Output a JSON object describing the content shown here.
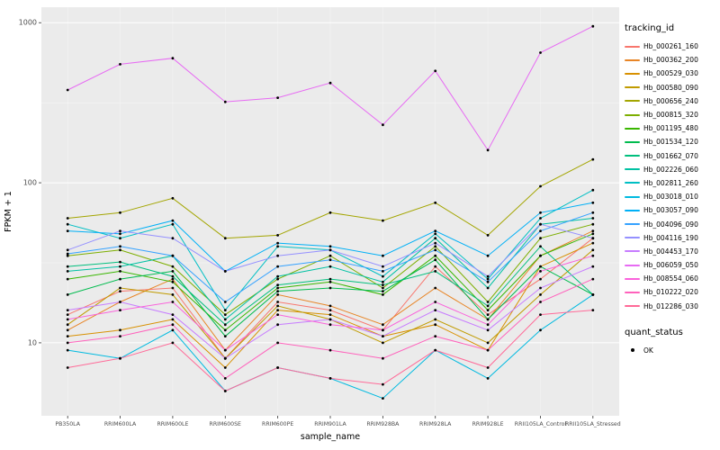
{
  "chart_data": {
    "type": "line",
    "title": "",
    "xlabel": "sample_name",
    "ylabel": "FPKM + 1",
    "y_scale": "log10",
    "ylim": [
      3.5,
      1250
    ],
    "y_major_ticks": [
      10,
      100,
      1000
    ],
    "y_minor_ticks": [
      31.62,
      316.2
    ],
    "grid": true,
    "panel_bg": "#EBEBEB",
    "grid_color": "#FFFFFF",
    "tick_label_color": "#4D4D4D",
    "axis_title_color": "#000000",
    "point_color": "#000000",
    "legend_position": "right",
    "legend_title": "tracking_id",
    "point_legend_title": "quant_status",
    "point_legend_entries": [
      {
        "label": "OK"
      }
    ],
    "categories": [
      "PB350LA",
      "RRIM600LA",
      "RRIM600LE",
      "RRIM600SE",
      "RRIM600PE",
      "RRIM901LA",
      "RRIM928BA",
      "RRIM928LA",
      "RRIM928LE",
      "RRII105LA_Control",
      "RRII105LA_Stressed"
    ],
    "series": [
      {
        "name": "Hb_000261_160",
        "color": "#F8766D",
        "values": [
          15,
          21,
          22,
          8,
          18,
          16,
          12,
          30,
          15,
          25,
          45
        ]
      },
      {
        "name": "Hb_000362_200",
        "color": "#E88526",
        "values": [
          12,
          18,
          25,
          9,
          20,
          17,
          13,
          22,
          14,
          35,
          50
        ]
      },
      {
        "name": "Hb_000529_030",
        "color": "#D89000",
        "values": [
          11,
          12,
          14,
          7,
          16,
          15,
          11,
          13,
          9,
          30,
          42
        ]
      },
      {
        "name": "Hb_000580_090",
        "color": "#C09B00",
        "values": [
          13,
          22,
          20,
          8,
          17,
          14,
          10,
          14,
          10,
          20,
          38
        ]
      },
      {
        "name": "Hb_000656_240",
        "color": "#A3A500",
        "values": [
          60,
          65,
          80,
          45,
          47,
          65,
          58,
          75,
          47,
          95,
          140
        ]
      },
      {
        "name": "Hb_000815_320",
        "color": "#7CAE00",
        "values": [
          35,
          38,
          30,
          15,
          25,
          35,
          22,
          40,
          18,
          45,
          55
        ]
      },
      {
        "name": "Hb_001195_480",
        "color": "#39B600",
        "values": [
          25,
          28,
          24,
          12,
          22,
          24,
          20,
          35,
          16,
          35,
          48
        ]
      },
      {
        "name": "Hb_001534_120",
        "color": "#00BB4E",
        "values": [
          20,
          25,
          28,
          11,
          21,
          22,
          21,
          33,
          14,
          30,
          20
        ]
      },
      {
        "name": "Hb_001662_070",
        "color": "#00BF7D",
        "values": [
          30,
          32,
          26,
          13,
          23,
          25,
          23,
          28,
          17,
          40,
          20
        ]
      },
      {
        "name": "Hb_002226_060",
        "color": "#00C1A3",
        "values": [
          28,
          30,
          35,
          14,
          26,
          30,
          24,
          45,
          22,
          55,
          60
        ]
      },
      {
        "name": "Hb_002811_260",
        "color": "#00BFC4",
        "values": [
          55,
          45,
          55,
          16,
          40,
          38,
          26,
          48,
          25,
          60,
          90
        ]
      },
      {
        "name": "Hb_003018_010",
        "color": "#00BAE0",
        "values": [
          9,
          8,
          12,
          5,
          7,
          6,
          4.5,
          9,
          6,
          12,
          20
        ]
      },
      {
        "name": "Hb_003057_090",
        "color": "#00B0F6",
        "values": [
          50,
          48,
          58,
          28,
          42,
          40,
          35,
          50,
          35,
          65,
          75
        ]
      },
      {
        "name": "Hb_004096_090",
        "color": "#35A2FF",
        "values": [
          36,
          40,
          35,
          18,
          30,
          33,
          28,
          38,
          24,
          50,
          65
        ]
      },
      {
        "name": "Hb_004116_190",
        "color": "#9590FF",
        "values": [
          38,
          50,
          45,
          28,
          35,
          38,
          30,
          42,
          26,
          55,
          45
        ]
      },
      {
        "name": "Hb_004453_170",
        "color": "#C77CFF",
        "values": [
          16,
          18,
          15,
          8,
          13,
          14,
          11,
          16,
          12,
          22,
          30
        ]
      },
      {
        "name": "Hb_006059_050",
        "color": "#E76BF3",
        "values": [
          380,
          550,
          600,
          320,
          340,
          420,
          230,
          500,
          160,
          650,
          950
        ]
      },
      {
        "name": "Hb_008554_060",
        "color": "#FA62DB",
        "values": [
          14,
          16,
          18,
          9,
          15,
          13,
          12,
          18,
          13,
          28,
          35
        ]
      },
      {
        "name": "Hb_010222_020",
        "color": "#FF62BC",
        "values": [
          10,
          11,
          13,
          6,
          10,
          9,
          8,
          11,
          9,
          18,
          25
        ]
      },
      {
        "name": "Hb_012286_030",
        "color": "#FF6A98",
        "values": [
          7,
          8,
          10,
          5,
          7,
          6,
          5.5,
          9,
          7,
          15,
          16
        ]
      }
    ]
  }
}
